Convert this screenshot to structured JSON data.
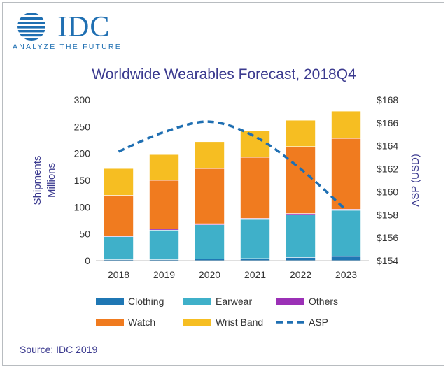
{
  "logo": {
    "text": "IDC",
    "tagline": "ANALYZE THE FUTURE",
    "color": "#1f6fb2"
  },
  "source": "Source: IDC 2019",
  "chart_data": {
    "type": "bar",
    "stacked": true,
    "title": "Worldwide Wearables Forecast, 2018Q4",
    "ylabel": "Shipments\nMillions",
    "ylabel_lines": [
      "Shipments",
      "Millions"
    ],
    "y2label": "ASP (USD)",
    "categories": [
      "2018",
      "2019",
      "2020",
      "2021",
      "2022",
      "2023"
    ],
    "ylim": [
      0,
      300
    ],
    "yticks": [
      0,
      50,
      100,
      150,
      200,
      250,
      300
    ],
    "y2lim": [
      154,
      168
    ],
    "y2ticks": [
      "$154",
      "$156",
      "$158",
      "$160",
      "$162",
      "$164",
      "$166",
      "$168"
    ],
    "y2tick_values": [
      154,
      156,
      158,
      160,
      162,
      164,
      166,
      168
    ],
    "grid": false,
    "series": [
      {
        "name": "Clothing",
        "color": "#1f77b4",
        "values": [
          2,
          2,
          3,
          4,
          6,
          8
        ]
      },
      {
        "name": "Earwear",
        "color": "#3fb0c9",
        "values": [
          43,
          55,
          64,
          73,
          80,
          86
        ]
      },
      {
        "name": "Others",
        "color": "#9b30b6",
        "values": [
          1,
          2,
          2,
          2,
          2,
          2
        ]
      },
      {
        "name": "Watch",
        "color": "#f07b1f",
        "values": [
          76,
          91,
          103,
          114,
          125,
          132
        ]
      },
      {
        "name": "Wrist Band",
        "color": "#f6be22",
        "values": [
          50,
          48,
          50,
          49,
          49,
          51
        ]
      }
    ],
    "line": {
      "name": "ASP",
      "color": "#1f6fb2",
      "style": "dashed",
      "axis": "right",
      "values": [
        163.5,
        165.2,
        166.1,
        164.8,
        162.0,
        158.4
      ]
    },
    "legend_position": "bottom"
  }
}
